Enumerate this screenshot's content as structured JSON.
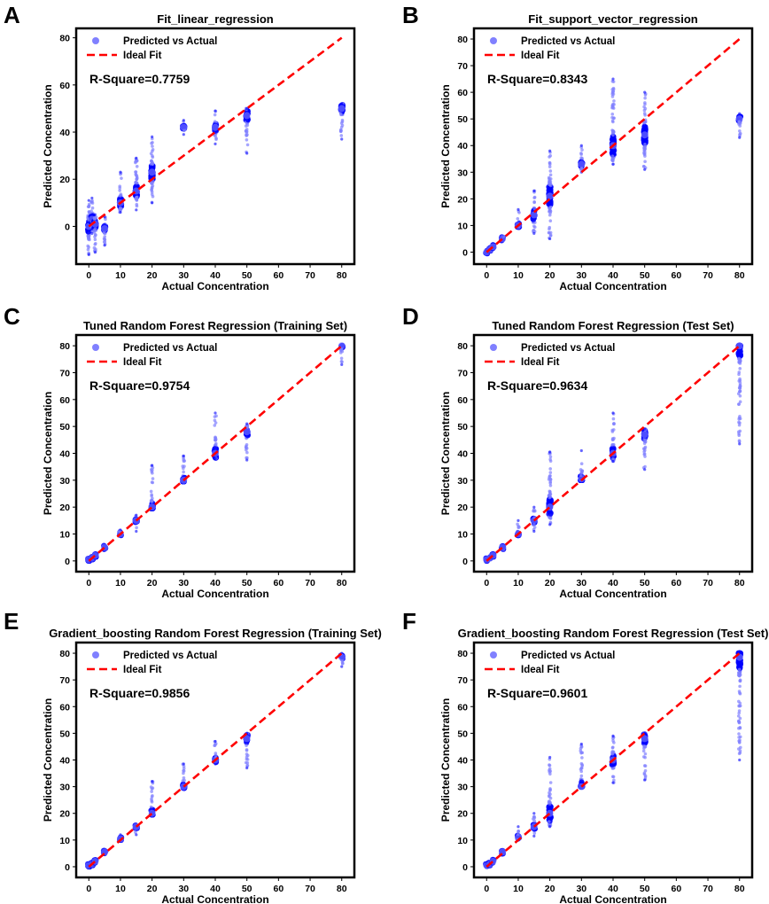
{
  "figure": {
    "panel_letters": [
      "A",
      "B",
      "C",
      "D",
      "E",
      "F"
    ]
  },
  "chart_data": [
    {
      "panel": "A",
      "type": "scatter",
      "title": "Fit_linear_regression",
      "xlabel": "Actual Concentration",
      "ylabel": "Predicted Concentration",
      "xlim": [
        -4,
        84
      ],
      "ylim": [
        -16,
        84
      ],
      "xticks": [
        0,
        10,
        20,
        30,
        40,
        50,
        60,
        70,
        80
      ],
      "yticks": [
        0,
        20,
        40,
        60,
        80
      ],
      "legend": [
        "Predicted vs Actual",
        "Ideal Fit"
      ],
      "legend_position": "top-left",
      "annotation": "R-Square=0.7759",
      "r_square": 0.7759,
      "ideal_fit": [
        [
          0,
          0
        ],
        [
          80,
          80
        ]
      ],
      "clusters": [
        {
          "x": 0,
          "ymin": -12,
          "ymax": 11,
          "center": 0
        },
        {
          "x": 1,
          "ymin": -3,
          "ymax": 12,
          "center": 3
        },
        {
          "x": 2,
          "ymin": -11,
          "ymax": 5,
          "center": 1
        },
        {
          "x": 5,
          "ymin": -8,
          "ymax": 4,
          "center": -1
        },
        {
          "x": 10,
          "ymin": 6,
          "ymax": 23,
          "center": 10
        },
        {
          "x": 15,
          "ymin": 7,
          "ymax": 29,
          "center": 15
        },
        {
          "x": 20,
          "ymin": 10,
          "ymax": 38,
          "center": 23
        },
        {
          "x": 30,
          "ymin": 39,
          "ymax": 45,
          "center": 42
        },
        {
          "x": 40,
          "ymin": 35,
          "ymax": 49,
          "center": 42
        },
        {
          "x": 50,
          "ymin": 31,
          "ymax": 50,
          "center": 47
        },
        {
          "x": 80,
          "ymin": 37,
          "ymax": 52,
          "center": 50
        }
      ]
    },
    {
      "panel": "B",
      "type": "scatter",
      "title": "Fit_support_vector_regression",
      "xlabel": "Actual Concentration",
      "ylabel": "Predicted Concentration",
      "xlim": [
        -4,
        84
      ],
      "ylim": [
        -4.5,
        84
      ],
      "xticks": [
        0,
        10,
        20,
        30,
        40,
        50,
        60,
        70,
        80
      ],
      "yticks": [
        0,
        10,
        20,
        30,
        40,
        50,
        60,
        70,
        80
      ],
      "legend": [
        "Predicted vs Actual",
        "Ideal Fit"
      ],
      "legend_position": "top-left",
      "annotation": "R-Square=0.8343",
      "r_square": 0.8343,
      "ideal_fit": [
        [
          0,
          0
        ],
        [
          80,
          80
        ]
      ],
      "clusters": [
        {
          "x": 0,
          "ymin": -0.5,
          "ymax": 1,
          "center": 0
        },
        {
          "x": 1,
          "ymin": 0.5,
          "ymax": 2,
          "center": 1
        },
        {
          "x": 2,
          "ymin": 1,
          "ymax": 3,
          "center": 2
        },
        {
          "x": 5,
          "ymin": 4,
          "ymax": 6,
          "center": 5
        },
        {
          "x": 10,
          "ymin": 9,
          "ymax": 16,
          "center": 10
        },
        {
          "x": 15,
          "ymin": 7,
          "ymax": 23,
          "center": 14
        },
        {
          "x": 20,
          "ymin": 5,
          "ymax": 38,
          "center": 21
        },
        {
          "x": 30,
          "ymin": 30,
          "ymax": 40,
          "center": 33
        },
        {
          "x": 40,
          "ymin": 33,
          "ymax": 65,
          "center": 40
        },
        {
          "x": 50,
          "ymin": 31,
          "ymax": 60,
          "center": 44
        },
        {
          "x": 80,
          "ymin": 43,
          "ymax": 52,
          "center": 50
        }
      ]
    },
    {
      "panel": "C",
      "type": "scatter",
      "title": "Tuned Random Forest Regression (Training Set)",
      "xlabel": "Actual Concentration",
      "ylabel": "Predicted Concentration",
      "xlim": [
        -4,
        84
      ],
      "ylim": [
        -4,
        84
      ],
      "xticks": [
        0,
        10,
        20,
        30,
        40,
        50,
        60,
        70,
        80
      ],
      "yticks": [
        0,
        10,
        20,
        30,
        40,
        50,
        60,
        70,
        80
      ],
      "legend": [
        "Predicted vs Actual",
        "Ideal Fit"
      ],
      "legend_position": "top-left",
      "annotation": "R-Square=0.9754",
      "r_square": 0.9754,
      "ideal_fit": [
        [
          0,
          0
        ],
        [
          80,
          80
        ]
      ],
      "clusters": [
        {
          "x": 0,
          "ymin": 0,
          "ymax": 1,
          "center": 0.5
        },
        {
          "x": 1,
          "ymin": 0.5,
          "ymax": 1.5,
          "center": 1
        },
        {
          "x": 2,
          "ymin": 1.5,
          "ymax": 2.5,
          "center": 2
        },
        {
          "x": 5,
          "ymin": 4,
          "ymax": 6,
          "center": 5
        },
        {
          "x": 10,
          "ymin": 9.5,
          "ymax": 11.5,
          "center": 10
        },
        {
          "x": 15,
          "ymin": 11,
          "ymax": 17,
          "center": 15
        },
        {
          "x": 20,
          "ymin": 19.5,
          "ymax": 35.5,
          "center": 20
        },
        {
          "x": 30,
          "ymin": 29.5,
          "ymax": 39,
          "center": 30
        },
        {
          "x": 40,
          "ymin": 38,
          "ymax": 55,
          "center": 40
        },
        {
          "x": 50,
          "ymin": 37.5,
          "ymax": 51,
          "center": 48
        },
        {
          "x": 80,
          "ymin": 73,
          "ymax": 80,
          "center": 80
        }
      ]
    },
    {
      "panel": "D",
      "type": "scatter",
      "title": "Tuned Random Forest Regression (Test Set)",
      "xlabel": "Actual Concentration",
      "ylabel": "Predicted Concentration",
      "xlim": [
        -4,
        84
      ],
      "ylim": [
        -4,
        84
      ],
      "xticks": [
        0,
        10,
        20,
        30,
        40,
        50,
        60,
        70,
        80
      ],
      "yticks": [
        0,
        10,
        20,
        30,
        40,
        50,
        60,
        70,
        80
      ],
      "legend": [
        "Predicted vs Actual",
        "Ideal Fit"
      ],
      "legend_position": "top-left",
      "annotation": "R-Square=0.9634",
      "r_square": 0.9634,
      "ideal_fit": [
        [
          0,
          0
        ],
        [
          80,
          80
        ]
      ],
      "clusters": [
        {
          "x": 0,
          "ymin": 0,
          "ymax": 1,
          "center": 0.5
        },
        {
          "x": 1,
          "ymin": 0.5,
          "ymax": 1.5,
          "center": 1
        },
        {
          "x": 2,
          "ymin": 1.5,
          "ymax": 2.5,
          "center": 2
        },
        {
          "x": 5,
          "ymin": 4,
          "ymax": 6,
          "center": 5
        },
        {
          "x": 10,
          "ymin": 9.5,
          "ymax": 15,
          "center": 10
        },
        {
          "x": 15,
          "ymin": 11,
          "ymax": 20,
          "center": 15
        },
        {
          "x": 20,
          "ymin": 13.5,
          "ymax": 40.5,
          "center": 20
        },
        {
          "x": 30,
          "ymin": 30,
          "ymax": 41,
          "center": 30.5
        },
        {
          "x": 40,
          "ymin": 37,
          "ymax": 55,
          "center": 40
        },
        {
          "x": 50,
          "ymin": 34,
          "ymax": 49,
          "center": 47
        },
        {
          "x": 80,
          "ymin": 43.5,
          "ymax": 80,
          "center": 80
        }
      ]
    },
    {
      "panel": "E",
      "type": "scatter",
      "title": "Gradient_boosting Random Forest Regression (Training Set)",
      "xlabel": "Actual Concentration",
      "ylabel": "Predicted Concentration",
      "xlim": [
        -4,
        84
      ],
      "ylim": [
        -4,
        84
      ],
      "xticks": [
        0,
        10,
        20,
        30,
        40,
        50,
        60,
        70,
        80
      ],
      "yticks": [
        0,
        10,
        20,
        30,
        40,
        50,
        60,
        70,
        80
      ],
      "legend": [
        "Predicted vs Actual",
        "Ideal Fit"
      ],
      "legend_position": "top-left",
      "annotation": "R-Square=0.9856",
      "r_square": 0.9856,
      "ideal_fit": [
        [
          0,
          0
        ],
        [
          80,
          80
        ]
      ],
      "clusters": [
        {
          "x": 0,
          "ymin": 0,
          "ymax": 1,
          "center": 0.5
        },
        {
          "x": 1,
          "ymin": 0.5,
          "ymax": 1.5,
          "center": 1
        },
        {
          "x": 2,
          "ymin": 1.5,
          "ymax": 2.5,
          "center": 2
        },
        {
          "x": 5,
          "ymin": 4.5,
          "ymax": 6,
          "center": 5.5
        },
        {
          "x": 10,
          "ymin": 10,
          "ymax": 12,
          "center": 10.5
        },
        {
          "x": 15,
          "ymin": 12,
          "ymax": 16,
          "center": 15
        },
        {
          "x": 20,
          "ymin": 19.5,
          "ymax": 32,
          "center": 20
        },
        {
          "x": 30,
          "ymin": 29.5,
          "ymax": 38.5,
          "center": 30
        },
        {
          "x": 40,
          "ymin": 38.5,
          "ymax": 47,
          "center": 40
        },
        {
          "x": 50,
          "ymin": 37,
          "ymax": 50,
          "center": 48
        },
        {
          "x": 80,
          "ymin": 75,
          "ymax": 80,
          "center": 78.5
        }
      ]
    },
    {
      "panel": "F",
      "type": "scatter",
      "title": "Gradient_boosting Random Forest Regression (Test Set)",
      "xlabel": "Actual Concentration",
      "ylabel": "Predicted Concentration",
      "xlim": [
        -4,
        84
      ],
      "ylim": [
        -4,
        84
      ],
      "xticks": [
        0,
        10,
        20,
        30,
        40,
        50,
        60,
        70,
        80
      ],
      "yticks": [
        0,
        10,
        20,
        30,
        40,
        50,
        60,
        70,
        80
      ],
      "legend": [
        "Predicted vs Actual",
        "Ideal Fit"
      ],
      "legend_position": "top-left",
      "annotation": "R-Square=0.9601",
      "r_square": 0.9601,
      "ideal_fit": [
        [
          0,
          0
        ],
        [
          80,
          80
        ]
      ],
      "clusters": [
        {
          "x": 0,
          "ymin": 0,
          "ymax": 1,
          "center": 0.5
        },
        {
          "x": 1,
          "ymin": 0.5,
          "ymax": 1.5,
          "center": 1
        },
        {
          "x": 2,
          "ymin": 1.5,
          "ymax": 3,
          "center": 2
        },
        {
          "x": 5,
          "ymin": 4.5,
          "ymax": 6,
          "center": 5.5
        },
        {
          "x": 10,
          "ymin": 10,
          "ymax": 15,
          "center": 11
        },
        {
          "x": 15,
          "ymin": 11.5,
          "ymax": 20,
          "center": 15
        },
        {
          "x": 20,
          "ymin": 15,
          "ymax": 41,
          "center": 20
        },
        {
          "x": 30,
          "ymin": 30,
          "ymax": 46,
          "center": 30
        },
        {
          "x": 40,
          "ymin": 31.5,
          "ymax": 49,
          "center": 40
        },
        {
          "x": 50,
          "ymin": 32.5,
          "ymax": 50,
          "center": 48
        },
        {
          "x": 80,
          "ymin": 40,
          "ymax": 80,
          "center": 78.5
        }
      ]
    }
  ],
  "colors": {
    "points": "#0000ff",
    "points_light": "#8080ff",
    "ideal_fit": "#ff0000",
    "axes": "#000000"
  }
}
